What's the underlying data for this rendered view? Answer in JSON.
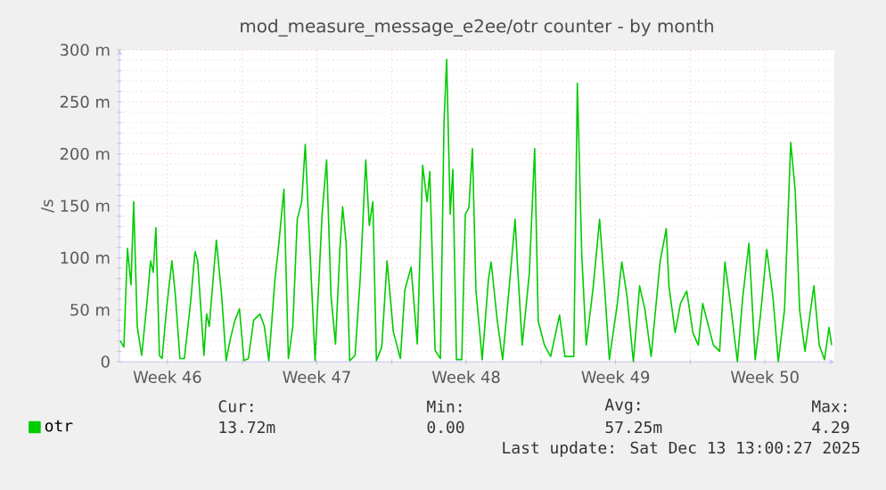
{
  "chart_data": {
    "type": "line",
    "title": "mod_measure_message_e2ee/otr counter - by month",
    "ylabel": "/s",
    "xlim": [
      "2025-11-10T06:00",
      "2025-12-13T18:00"
    ],
    "ylim": [
      0,
      300
    ],
    "xticks": [
      {
        "value": "2025-11-12T12:00",
        "label": "Week 46"
      },
      {
        "value": "2025-11-16T00:00",
        "label": null
      },
      {
        "value": "2025-11-19T12:00",
        "label": "Week 47"
      },
      {
        "value": "2025-11-23T00:00",
        "label": null
      },
      {
        "value": "2025-11-26T12:00",
        "label": "Week 48"
      },
      {
        "value": "2025-11-30T00:00",
        "label": null
      },
      {
        "value": "2025-12-03T12:00",
        "label": "Week 49"
      },
      {
        "value": "2025-12-07T00:00",
        "label": null
      },
      {
        "value": "2025-12-10T12:00",
        "label": "Week 50"
      }
    ],
    "yticks": [
      0,
      {
        "value": 50,
        "label": "50 m"
      },
      {
        "value": 100,
        "label": "100 m"
      },
      {
        "value": 150,
        "label": "150 m"
      },
      {
        "value": 200,
        "label": "200 m"
      },
      {
        "value": 250,
        "label": "250 m"
      },
      {
        "value": 300,
        "label": "300 m"
      }
    ],
    "grid": true,
    "legend": "bottom left",
    "marker": "none",
    "line_style": "solid",
    "series": [
      {
        "name": "otr",
        "color": "#00cc00",
        "x": [
          "2025-11-10T07:00",
          "2025-11-10T11:00",
          "2025-11-10T15:00",
          "2025-11-10T19:00",
          "2025-11-10T22:00",
          "2025-11-11T02:00",
          "2025-11-11T07:00",
          "2025-11-11T13:00",
          "2025-11-11T17:00",
          "2025-11-11T20:00",
          "2025-11-11T23:00",
          "2025-11-12T03:00",
          "2025-11-12T06:00",
          "2025-11-12T11:00",
          "2025-11-12T17:00",
          "2025-11-12T21:00",
          "2025-11-13T02:00",
          "2025-11-13T07:00",
          "2025-11-13T14:00",
          "2025-11-13T19:00",
          "2025-11-13T22:00",
          "2025-11-14T05:00",
          "2025-11-14T08:00",
          "2025-11-14T11:00",
          "2025-11-14T19:00",
          "2025-11-15T01:00",
          "2025-11-15T06:00",
          "2025-11-15T11:00",
          "2025-11-15T16:00",
          "2025-11-15T21:00",
          "2025-11-16T02:00",
          "2025-11-16T07:00",
          "2025-11-16T13:00",
          "2025-11-16T20:00",
          "2025-11-17T01:00",
          "2025-11-17T06:00",
          "2025-11-17T13:00",
          "2025-11-17T17:00",
          "2025-11-17T23:00",
          "2025-11-18T04:00",
          "2025-11-18T09:00",
          "2025-11-18T14:00",
          "2025-11-18T19:00",
          "2025-11-18T23:00",
          "2025-11-19T03:00",
          "2025-11-19T10:00",
          "2025-11-19T18:00",
          "2025-11-19T23:00",
          "2025-11-20T04:00",
          "2025-11-20T09:00",
          "2025-11-20T14:00",
          "2025-11-20T17:00",
          "2025-11-20T21:00",
          "2025-11-21T01:00",
          "2025-11-21T07:00",
          "2025-11-21T13:00",
          "2025-11-21T19:00",
          "2025-11-21T23:00",
          "2025-11-22T03:00",
          "2025-11-22T07:00",
          "2025-11-22T13:00",
          "2025-11-22T19:00",
          "2025-11-23T02:00",
          "2025-11-23T10:00",
          "2025-11-23T15:00",
          "2025-11-23T22:00",
          "2025-11-24T05:00",
          "2025-11-24T11:00",
          "2025-11-24T16:00",
          "2025-11-24T19:00",
          "2025-11-25T01:00",
          "2025-11-25T07:00",
          "2025-11-25T11:00",
          "2025-11-25T14:00",
          "2025-11-25T18:00",
          "2025-11-25T21:00",
          "2025-11-26T01:00",
          "2025-11-26T07:00",
          "2025-11-26T11:00",
          "2025-11-26T15:00",
          "2025-11-26T19:00",
          "2025-11-26T23:00",
          "2025-11-27T06:00",
          "2025-11-27T13:00",
          "2025-11-27T16:00",
          "2025-11-27T23:00",
          "2025-11-28T05:00",
          "2025-11-28T12:00",
          "2025-11-28T19:00",
          "2025-11-28T22:00",
          "2025-11-29T03:00",
          "2025-11-29T11:00",
          "2025-11-29T17:00",
          "2025-11-29T21:00",
          "2025-11-30T04:00",
          "2025-11-30T11:00",
          "2025-11-30T21:00",
          "2025-12-01T03:00",
          "2025-12-01T13:00",
          "2025-12-01T17:00",
          "2025-12-01T22:00",
          "2025-12-02T03:00",
          "2025-12-02T11:00",
          "2025-12-02T18:00",
          "2025-12-02T23:00",
          "2025-12-03T05:00",
          "2025-12-03T14:00",
          "2025-12-03T19:00",
          "2025-12-04T01:00",
          "2025-12-04T08:00",
          "2025-12-04T15:00",
          "2025-12-04T21:00",
          "2025-12-05T04:00",
          "2025-12-05T14:00",
          "2025-12-05T21:00",
          "2025-12-06T00:00",
          "2025-12-06T07:00",
          "2025-12-06T13:00",
          "2025-12-06T20:00",
          "2025-12-07T03:00",
          "2025-12-07T09:00",
          "2025-12-07T14:00",
          "2025-12-07T19:00",
          "2025-12-08T02:00",
          "2025-12-08T09:00",
          "2025-12-08T15:00",
          "2025-12-08T22:00",
          "2025-12-09T05:00",
          "2025-12-09T11:00",
          "2025-12-09T18:00",
          "2025-12-10T01:00",
          "2025-12-10T07:00",
          "2025-12-10T14:00",
          "2025-12-10T21:00",
          "2025-12-11T03:00",
          "2025-12-11T10:00",
          "2025-12-11T17:00",
          "2025-12-11T22:00",
          "2025-12-12T03:00",
          "2025-12-12T09:00",
          "2025-12-12T19:00",
          "2025-12-13T01:00",
          "2025-12-13T07:00",
          "2025-12-13T12:00",
          "2025-12-13T15:00"
        ],
        "values": [
          20,
          14,
          109,
          74,
          154,
          34,
          6,
          57,
          97,
          86,
          129,
          6,
          3,
          51,
          97,
          63,
          3,
          3,
          57,
          106,
          97,
          6,
          46,
          34,
          117,
          63,
          1,
          23,
          40,
          51,
          1,
          3,
          40,
          46,
          34,
          1,
          80,
          111,
          166,
          3,
          34,
          137,
          154,
          209,
          131,
          1,
          143,
          194,
          63,
          17,
          109,
          149,
          114,
          1,
          6,
          83,
          194,
          131,
          154,
          1,
          14,
          97,
          29,
          3,
          69,
          91,
          17,
          189,
          154,
          183,
          11,
          3,
          229,
          291,
          142,
          185,
          2,
          2,
          142,
          148,
          205,
          68,
          2,
          79,
          96,
          39,
          2,
          68,
          137,
          88,
          16,
          85,
          205,
          39,
          16,
          5,
          45,
          5,
          5,
          268,
          102,
          16,
          73,
          137,
          79,
          2,
          56,
          96,
          62,
          0,
          73,
          50,
          5,
          96,
          128,
          73,
          28,
          56,
          68,
          28,
          16,
          56,
          39,
          16,
          10,
          96,
          50,
          0,
          62,
          114,
          2,
          45,
          108,
          62,
          0,
          50,
          211,
          165,
          50,
          10,
          73,
          16,
          2,
          33,
          16
        ]
      }
    ],
    "annotations": [
      "Cur:",
      "13.72m",
      "Min:",
      "0.00",
      "Avg:",
      "57.25m",
      "Max:",
      "4.29",
      "Last update: Sat Dec 13 13:00:27 2025"
    ]
  }
}
